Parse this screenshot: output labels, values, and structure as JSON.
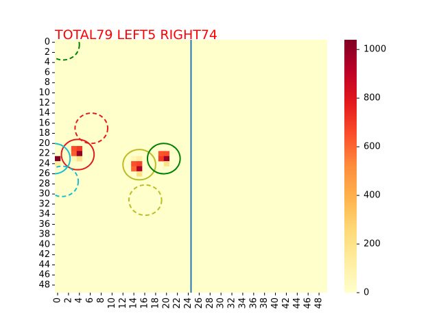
{
  "chart_data": {
    "type": "heatmap",
    "title": "TOTAL79  LEFT5 RIGHT74",
    "title_color": "#ff0000",
    "grid_size": 50,
    "x_ticks": [
      "0",
      "2",
      "4",
      "6",
      "8",
      "10",
      "12",
      "14",
      "16",
      "18",
      "20",
      "22",
      "24",
      "26",
      "28",
      "30",
      "32",
      "34",
      "36",
      "38",
      "40",
      "42",
      "44",
      "46",
      "48"
    ],
    "y_ticks": [
      "0",
      "2",
      "4",
      "6",
      "8",
      "10",
      "12",
      "14",
      "16",
      "18",
      "20",
      "22",
      "24",
      "26",
      "28",
      "30",
      "32",
      "34",
      "36",
      "38",
      "40",
      "42",
      "44",
      "46",
      "48"
    ],
    "colorbar": {
      "colormap": "YlOrRd",
      "min": 0,
      "max": 1040,
      "ticks": [
        "0",
        "200",
        "400",
        "600",
        "800",
        "1000"
      ]
    },
    "background_color": "#ffffcc",
    "cells": [
      {
        "x": 0,
        "y": 23,
        "value": 1040
      },
      {
        "x": 0,
        "y": 24,
        "value": 120
      },
      {
        "x": 3,
        "y": 21,
        "value": 650
      },
      {
        "x": 4,
        "y": 21,
        "value": 700
      },
      {
        "x": 3,
        "y": 22,
        "value": 620
      },
      {
        "x": 4,
        "y": 22,
        "value": 1000
      },
      {
        "x": 3,
        "y": 23,
        "value": 60
      },
      {
        "x": 4,
        "y": 23,
        "value": 200
      },
      {
        "x": 14,
        "y": 23,
        "value": 60
      },
      {
        "x": 15,
        "y": 23,
        "value": 120
      },
      {
        "x": 14,
        "y": 24,
        "value": 650
      },
      {
        "x": 15,
        "y": 24,
        "value": 680
      },
      {
        "x": 14,
        "y": 25,
        "value": 600
      },
      {
        "x": 15,
        "y": 25,
        "value": 950
      },
      {
        "x": 15,
        "y": 26,
        "value": 220
      },
      {
        "x": 19,
        "y": 22,
        "value": 640
      },
      {
        "x": 20,
        "y": 22,
        "value": 650
      },
      {
        "x": 19,
        "y": 23,
        "value": 700
      },
      {
        "x": 20,
        "y": 23,
        "value": 980
      },
      {
        "x": 20,
        "y": 24,
        "value": 200
      }
    ],
    "circles": [
      {
        "cx": 1,
        "cy": 0.5,
        "r": 3,
        "color": "#008000",
        "style": "dashed"
      },
      {
        "cx": 6.2,
        "cy": 17,
        "r": 3,
        "color": "#e31a1c",
        "style": "dashed"
      },
      {
        "cx": 3.7,
        "cy": 22.2,
        "r": 3,
        "color": "#e31a1c",
        "style": "solid"
      },
      {
        "cx": -0.7,
        "cy": 23,
        "r": 3,
        "color": "#17becf",
        "style": "solid"
      },
      {
        "cx": 0.8,
        "cy": 27.5,
        "r": 3,
        "color": "#17becf",
        "style": "dashed"
      },
      {
        "cx": 15,
        "cy": 24.2,
        "r": 3,
        "color": "#bcbd22",
        "style": "solid"
      },
      {
        "cx": 16.1,
        "cy": 31.2,
        "r": 3,
        "color": "#bcbd22",
        "style": "dashed"
      },
      {
        "cx": 19.5,
        "cy": 23,
        "r": 3,
        "color": "#008000",
        "style": "solid"
      }
    ],
    "vertical_line": {
      "x": 25,
      "color": "#1f77b4"
    }
  }
}
